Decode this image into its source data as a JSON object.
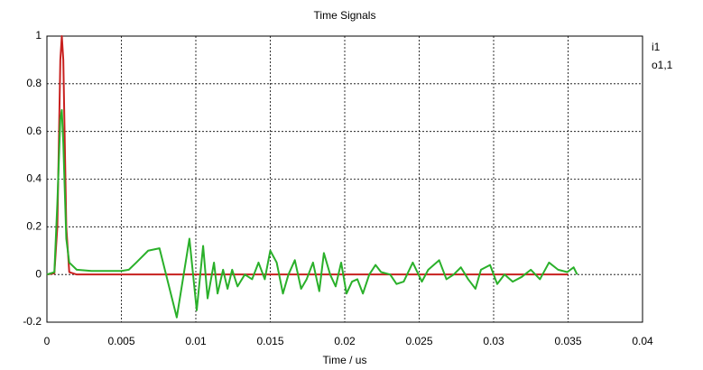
{
  "chart_data": {
    "type": "line",
    "title": "Time Signals",
    "x_label": "Time / us",
    "xlim": [
      0,
      0.04
    ],
    "xticks": [
      0,
      0.005,
      0.01,
      0.015,
      0.02,
      0.025,
      0.03,
      0.035,
      0.04
    ],
    "ylim": [
      -0.2,
      1
    ],
    "yticks": [
      -0.2,
      0,
      0.2,
      0.4,
      0.6,
      0.8,
      1
    ],
    "grid": true,
    "legend": "right",
    "series": [
      {
        "name": "i1",
        "color": "#c8201e",
        "x": [
          0,
          0.0005,
          0.0007,
          0.0009,
          0.001,
          0.0011,
          0.0013,
          0.0015,
          0.002,
          0.035
        ],
        "values": [
          0,
          0.005,
          0.2,
          0.9,
          1,
          0.9,
          0.2,
          0.01,
          0,
          0
        ]
      },
      {
        "name": "o1,1",
        "color": "#2ab02a",
        "x": [
          0,
          0.0005,
          0.0007,
          0.0009,
          0.001,
          0.0011,
          0.0013,
          0.0015,
          0.002,
          0.003,
          0.005,
          0.0055,
          0.006,
          0.0068,
          0.00756,
          0.00872,
          0.00957,
          0.01006,
          0.01049,
          0.01079,
          0.01122,
          0.01146,
          0.01183,
          0.01213,
          0.01244,
          0.0128,
          0.01329,
          0.01378,
          0.01421,
          0.01463,
          0.015,
          0.01543,
          0.01585,
          0.01622,
          0.01665,
          0.01707,
          0.01744,
          0.01787,
          0.01829,
          0.0186,
          0.01902,
          0.01939,
          0.01976,
          0.02012,
          0.02049,
          0.02085,
          0.02122,
          0.02165,
          0.02207,
          0.02244,
          0.02305,
          0.02348,
          0.02396,
          0.02457,
          0.02518,
          0.02561,
          0.02634,
          0.02683,
          0.02732,
          0.0278,
          0.02829,
          0.02878,
          0.02915,
          0.02976,
          0.03024,
          0.03073,
          0.03128,
          0.03189,
          0.0325,
          0.03311,
          0.03372,
          0.03433,
          0.03494,
          0.03537,
          0.03561
        ],
        "values": [
          0,
          0.01,
          0.3,
          0.65,
          0.69,
          0.55,
          0.15,
          0.05,
          0.02,
          0.015,
          0.015,
          0.02,
          0.05,
          0.1,
          0.11,
          -0.18,
          0.15,
          -0.15,
          0.12,
          -0.1,
          0.05,
          -0.08,
          0.02,
          -0.06,
          0.02,
          -0.05,
          0,
          -0.02,
          0.05,
          -0.02,
          0.1,
          0.05,
          -0.08,
          0,
          0.06,
          -0.06,
          -0.02,
          0.05,
          -0.07,
          0.09,
          0,
          -0.05,
          0.05,
          -0.08,
          -0.03,
          -0.02,
          -0.08,
          0,
          0.04,
          0.01,
          0,
          -0.04,
          -0.03,
          0.05,
          -0.03,
          0.02,
          0.06,
          -0.02,
          0,
          0.03,
          -0.02,
          -0.06,
          0.02,
          0.04,
          -0.04,
          0,
          -0.03,
          -0.01,
          0.02,
          -0.02,
          0.05,
          0.02,
          0.01,
          0.03,
          0
        ]
      }
    ]
  }
}
